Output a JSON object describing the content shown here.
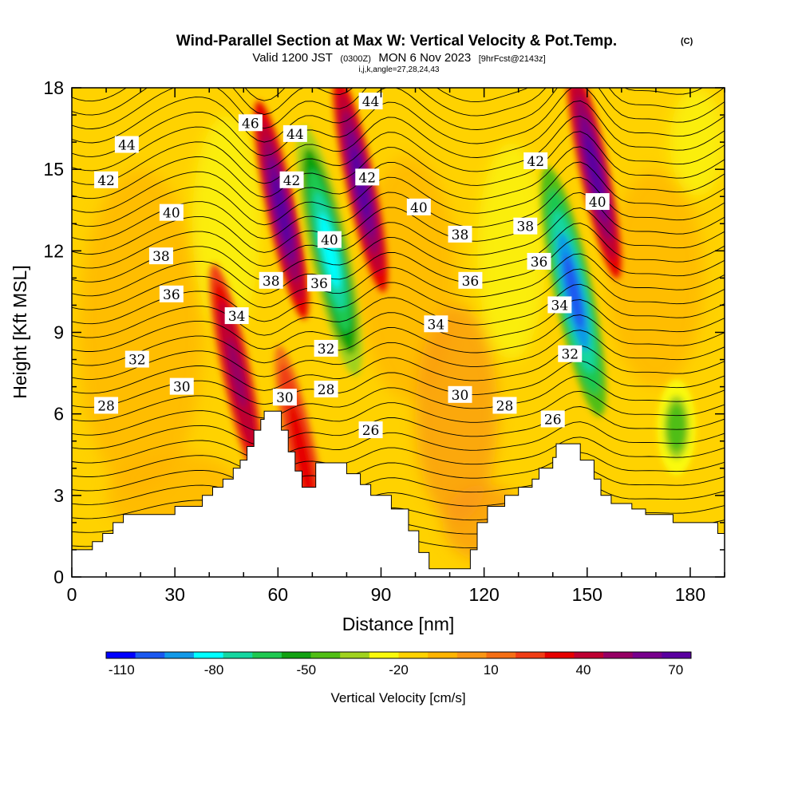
{
  "header": {
    "title": "Wind-Parallel Section at Max W: Vertical Velocity & Pot.Temp.",
    "copyright": "(C)",
    "valid_prefix": "Valid 1200 JST",
    "valid_utc": "(0300Z)",
    "valid_date": "MON 6 Nov 2023",
    "forecast_info": "[9hrFcst@2143z]",
    "indices": "i,j,k,angle=27,28,24,43"
  },
  "chart_data": {
    "type": "heatmap",
    "title": "Wind-Parallel Section at Max W: Vertical Velocity & Pot.Temp.",
    "xlabel": "Distance [nm]",
    "ylabel": "Height [Kft MSL]",
    "xlim": [
      0,
      190
    ],
    "ylim": [
      0,
      18
    ],
    "xticks": [
      "0",
      "30",
      "60",
      "90",
      "120",
      "150",
      "180"
    ],
    "yticks": [
      "0",
      "3",
      "6",
      "9",
      "12",
      "15",
      "18"
    ],
    "colorbar": {
      "label": "Vertical Velocity [cm/s]",
      "tick_labels": [
        "-110",
        "-80",
        "-50",
        "-20",
        "10",
        "40",
        "70"
      ],
      "tick_values": [
        -110,
        -80,
        -50,
        -20,
        10,
        40,
        70
      ],
      "colors": [
        "#0000ff",
        "#1a58f0",
        "#1199e8",
        "#00ffff",
        "#14d6a0",
        "#1ec850",
        "#11a111",
        "#50be14",
        "#a0d21e",
        "#fafa0a",
        "#ffd200",
        "#ffb400",
        "#fa9614",
        "#f56e14",
        "#f03c14",
        "#e60000",
        "#be0032",
        "#960064",
        "#78008c",
        "#5a00a0"
      ]
    },
    "terrain_kft": [
      [
        0,
        1.0
      ],
      [
        6,
        1.0
      ],
      [
        6,
        1.3
      ],
      [
        9,
        1.3
      ],
      [
        9,
        1.6
      ],
      [
        12,
        1.6
      ],
      [
        12,
        2.0
      ],
      [
        15,
        2.0
      ],
      [
        15,
        2.3
      ],
      [
        30,
        2.3
      ],
      [
        30,
        2.6
      ],
      [
        38,
        2.6
      ],
      [
        38,
        3.0
      ],
      [
        41,
        3.0
      ],
      [
        41,
        3.3
      ],
      [
        44,
        3.3
      ],
      [
        44,
        3.6
      ],
      [
        47,
        3.6
      ],
      [
        47,
        4.0
      ],
      [
        49,
        4.0
      ],
      [
        49,
        4.3
      ],
      [
        51,
        4.3
      ],
      [
        51,
        4.8
      ],
      [
        53,
        4.8
      ],
      [
        53,
        5.4
      ],
      [
        55,
        5.4
      ],
      [
        55,
        5.8
      ],
      [
        56,
        5.8
      ],
      [
        56,
        6.1
      ],
      [
        61,
        6.1
      ],
      [
        61,
        5.4
      ],
      [
        63,
        5.4
      ],
      [
        63,
        4.6
      ],
      [
        65,
        4.6
      ],
      [
        65,
        3.9
      ],
      [
        67,
        3.9
      ],
      [
        67,
        3.3
      ],
      [
        71,
        3.3
      ],
      [
        71,
        4.2
      ],
      [
        80,
        4.2
      ],
      [
        80,
        3.8
      ],
      [
        84,
        3.8
      ],
      [
        84,
        3.4
      ],
      [
        87,
        3.4
      ],
      [
        87,
        3.0
      ],
      [
        93,
        3.0
      ],
      [
        93,
        2.5
      ],
      [
        98,
        2.5
      ],
      [
        98,
        1.7
      ],
      [
        101,
        1.7
      ],
      [
        101,
        0.9
      ],
      [
        104,
        0.9
      ],
      [
        104,
        0.3
      ],
      [
        116,
        0.3
      ],
      [
        116,
        1.0
      ],
      [
        118,
        1.0
      ],
      [
        118,
        2.0
      ],
      [
        121,
        2.0
      ],
      [
        121,
        2.6
      ],
      [
        126,
        2.6
      ],
      [
        126,
        3.0
      ],
      [
        130,
        3.0
      ],
      [
        130,
        3.3
      ],
      [
        134,
        3.3
      ],
      [
        134,
        3.6
      ],
      [
        136,
        3.6
      ],
      [
        136,
        4.0
      ],
      [
        140,
        4.0
      ],
      [
        140,
        4.4
      ],
      [
        141,
        4.4
      ],
      [
        141,
        4.9
      ],
      [
        148,
        4.9
      ],
      [
        148,
        4.3
      ],
      [
        152,
        4.3
      ],
      [
        152,
        3.6
      ],
      [
        154,
        3.6
      ],
      [
        154,
        3.0
      ],
      [
        157,
        3.0
      ],
      [
        157,
        2.7
      ],
      [
        163,
        2.7
      ],
      [
        163,
        2.5
      ],
      [
        167,
        2.5
      ],
      [
        167,
        2.3
      ],
      [
        175,
        2.3
      ],
      [
        175,
        2.0
      ],
      [
        188,
        2.0
      ],
      [
        188,
        1.6
      ],
      [
        190,
        1.6
      ]
    ],
    "updraft_cores": [
      {
        "x": 48,
        "y": 7.5,
        "w_cms": 60
      },
      {
        "x": 61,
        "y": 13.5,
        "w_cms": 80
      },
      {
        "x": 67,
        "y": 4.5,
        "w_cms": 40
      },
      {
        "x": 84,
        "y": 14.5,
        "w_cms": 80
      },
      {
        "x": 152,
        "y": 15.0,
        "w_cms": 80
      }
    ],
    "downdraft_cores": [
      {
        "x": 75,
        "y": 12.0,
        "w_cms": -90
      },
      {
        "x": 146,
        "y": 10.5,
        "w_cms": -110
      },
      {
        "x": 176,
        "y": 5.5,
        "w_cms": -50
      }
    ],
    "isentropes_labels": [
      {
        "text": "46",
        "x": 52,
        "y": 16.7
      },
      {
        "text": "44",
        "x": 16,
        "y": 15.9
      },
      {
        "text": "44",
        "x": 65,
        "y": 16.3
      },
      {
        "text": "44",
        "x": 87,
        "y": 17.5
      },
      {
        "text": "42",
        "x": 10,
        "y": 14.6
      },
      {
        "text": "42",
        "x": 64,
        "y": 14.6
      },
      {
        "text": "42",
        "x": 86,
        "y": 14.7
      },
      {
        "text": "42",
        "x": 135,
        "y": 15.3
      },
      {
        "text": "40",
        "x": 29,
        "y": 13.4
      },
      {
        "text": "40",
        "x": 75,
        "y": 12.4
      },
      {
        "text": "40",
        "x": 101,
        "y": 13.6
      },
      {
        "text": "40",
        "x": 153,
        "y": 13.8
      },
      {
        "text": "38",
        "x": 26,
        "y": 11.8
      },
      {
        "text": "38",
        "x": 58,
        "y": 10.9
      },
      {
        "text": "38",
        "x": 113,
        "y": 12.6
      },
      {
        "text": "38",
        "x": 132,
        "y": 12.9
      },
      {
        "text": "36",
        "x": 29,
        "y": 10.4
      },
      {
        "text": "36",
        "x": 72,
        "y": 10.8
      },
      {
        "text": "36",
        "x": 116,
        "y": 10.9
      },
      {
        "text": "36",
        "x": 136,
        "y": 11.6
      },
      {
        "text": "34",
        "x": 48,
        "y": 9.6
      },
      {
        "text": "34",
        "x": 106,
        "y": 9.3
      },
      {
        "text": "34",
        "x": 142,
        "y": 10.0
      },
      {
        "text": "32",
        "x": 19,
        "y": 8.0
      },
      {
        "text": "32",
        "x": 74,
        "y": 8.4
      },
      {
        "text": "32",
        "x": 145,
        "y": 8.2
      },
      {
        "text": "30",
        "x": 32,
        "y": 7.0
      },
      {
        "text": "30",
        "x": 62,
        "y": 6.6
      },
      {
        "text": "30",
        "x": 113,
        "y": 6.7
      },
      {
        "text": "28",
        "x": 10,
        "y": 6.3
      },
      {
        "text": "28",
        "x": 74,
        "y": 6.9
      },
      {
        "text": "28",
        "x": 126,
        "y": 6.3
      },
      {
        "text": "26",
        "x": 87,
        "y": 5.4
      },
      {
        "text": "26",
        "x": 140,
        "y": 5.8
      }
    ]
  }
}
